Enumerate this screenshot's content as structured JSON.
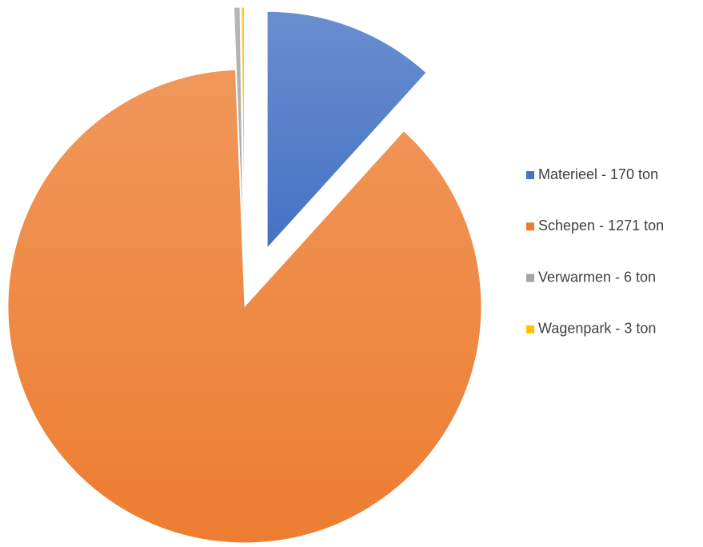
{
  "chart_data": {
    "type": "pie",
    "categories": [
      "Materieel - 170 ton",
      "Schepen - 1271 ton",
      "Verwarmen - 6 ton",
      "Wagenpark - 3 ton"
    ],
    "values": [
      170,
      1271,
      6,
      3
    ],
    "colors": [
      "#4472c4",
      "#ed7d31",
      "#a5a5a5",
      "#ffc000"
    ],
    "legend": "right"
  }
}
